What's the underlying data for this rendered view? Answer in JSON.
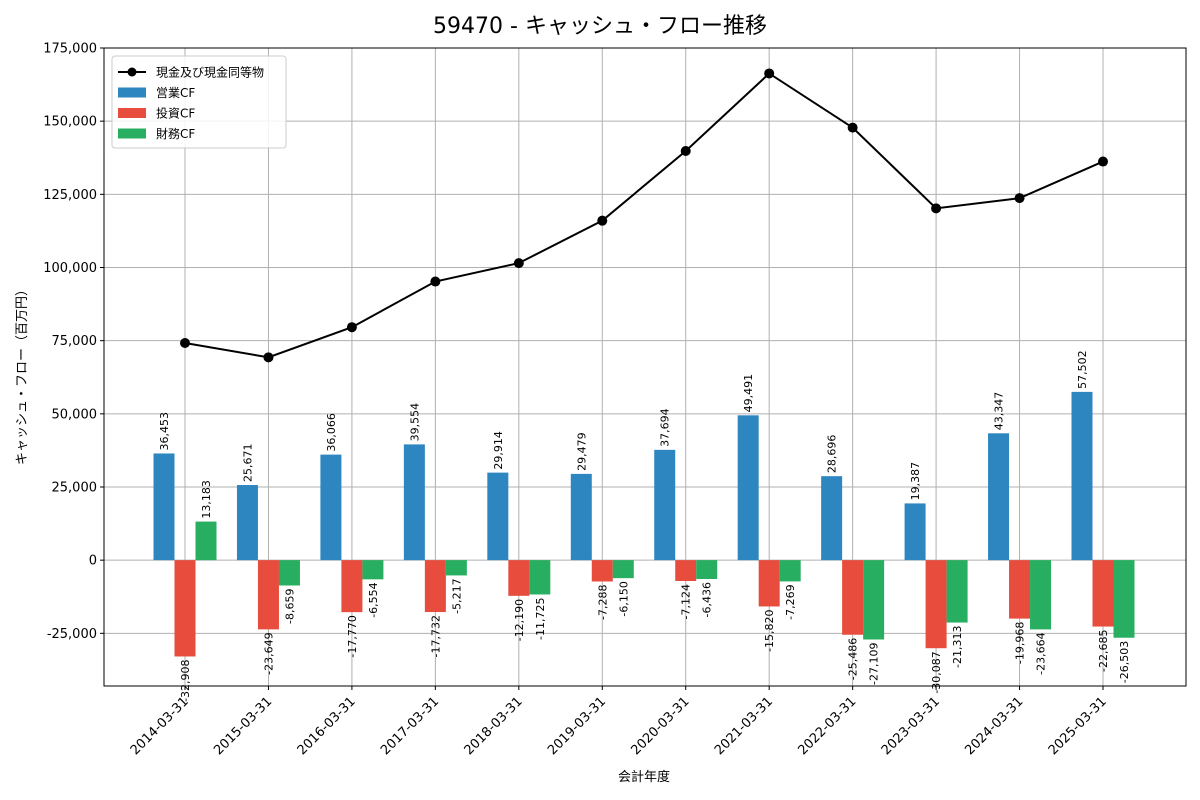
{
  "chart_data": {
    "type": "bar",
    "title": "59470 - キャッシュ・フロー推移",
    "xlabel": "会計年度",
    "ylabel": "キャッシュ・フロー（百万円）",
    "ylim": [
      -43000,
      175000
    ],
    "yticks": [
      -25000,
      0,
      25000,
      50000,
      75000,
      100000,
      125000,
      150000,
      175000
    ],
    "ytick_labels": [
      "-25,000",
      "0",
      "25,000",
      "50,000",
      "75,000",
      "100,000",
      "125,000",
      "150,000",
      "175,000"
    ],
    "grid": true,
    "legend_position": "top-left",
    "categories": [
      "2014-03-31",
      "2015-03-31",
      "2016-03-31",
      "2017-03-31",
      "2018-03-31",
      "2019-03-31",
      "2020-03-31",
      "2021-03-31",
      "2022-03-31",
      "2023-03-31",
      "2024-03-31",
      "2025-03-31"
    ],
    "series": [
      {
        "name": "営業CF",
        "type": "bar",
        "color": "#2e86c1",
        "values": [
          36453,
          25671,
          36066,
          39554,
          29914,
          29479,
          37694,
          49491,
          28696,
          19387,
          43347,
          57502
        ],
        "labels": [
          "36,453",
          "25,671",
          "36,066",
          "39,554",
          "29,914",
          "29,479",
          "37,694",
          "49,491",
          "28,696",
          "19,387",
          "43,347",
          "57,502"
        ]
      },
      {
        "name": "投資CF",
        "type": "bar",
        "color": "#e74c3c",
        "values": [
          -32908,
          -23649,
          -17770,
          -17732,
          -12190,
          -7288,
          -7124,
          -15820,
          -25486,
          -30087,
          -19968,
          -22685
        ],
        "labels": [
          "-32,908",
          "-23,649",
          "-17,770",
          "-17,732",
          "-12,190",
          "-7,288",
          "-7,124",
          "-15,820",
          "-25,486",
          "-30,087",
          "-19,968",
          "-22,685"
        ]
      },
      {
        "name": "財務CF",
        "type": "bar",
        "color": "#27ae60",
        "values": [
          13183,
          -8659,
          -6554,
          -5217,
          -11725,
          -6150,
          -6436,
          -7269,
          -27109,
          -21313,
          -23664,
          -26503
        ],
        "labels": [
          "13,183",
          "-8,659",
          "-6,554",
          "-5,217",
          "-11,725",
          "-6,150",
          "-6,436",
          "-7,269",
          "-27,109",
          "-21,313",
          "-23,664",
          "-26,503"
        ]
      },
      {
        "name": "現金及び現金同等物",
        "type": "line",
        "color": "#000000",
        "values": [
          74200,
          69300,
          79600,
          95200,
          101500,
          116000,
          139800,
          166300,
          147800,
          120200,
          123700,
          136200
        ]
      }
    ]
  }
}
